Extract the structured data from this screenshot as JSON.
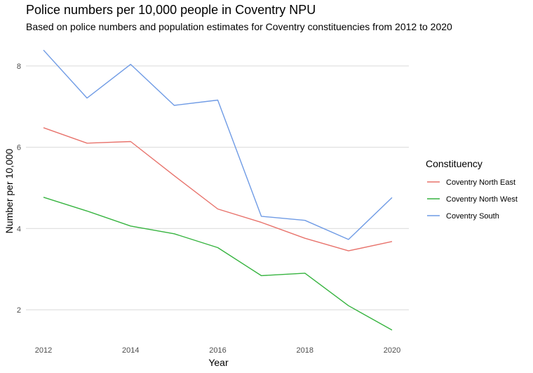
{
  "chart_data": {
    "type": "line",
    "title": "Police numbers per 10,000 people in Coventry NPU",
    "subtitle": "Based on police numbers and population estimates for Coventry constituencies from 2012 to 2020",
    "xlabel": "Year",
    "ylabel": "Number per 10,000",
    "x": [
      2012,
      2013,
      2014,
      2015,
      2016,
      2017,
      2018,
      2019,
      2020
    ],
    "x_ticks": [
      "2012",
      "2014",
      "2016",
      "2018",
      "2020"
    ],
    "y_ticks": [
      "2",
      "4",
      "6",
      "8"
    ],
    "xlim": [
      2012,
      2020
    ],
    "ylim": [
      1.5,
      8.4
    ],
    "grid": "horizontal",
    "legend_title": "Constituency",
    "legend_position": "right",
    "series": [
      {
        "name": "Coventry North East",
        "color": "#E8736C",
        "values": [
          6.48,
          6.1,
          6.14,
          5.3,
          4.48,
          4.15,
          3.76,
          3.45,
          3.68
        ]
      },
      {
        "name": "Coventry North West",
        "color": "#37B440",
        "values": [
          4.77,
          4.43,
          4.06,
          3.87,
          3.53,
          2.84,
          2.9,
          2.1,
          1.5
        ]
      },
      {
        "name": "Coventry South",
        "color": "#6F9BE5",
        "values": [
          8.39,
          7.21,
          8.04,
          7.03,
          7.16,
          4.3,
          4.2,
          3.73,
          4.76
        ]
      }
    ]
  }
}
